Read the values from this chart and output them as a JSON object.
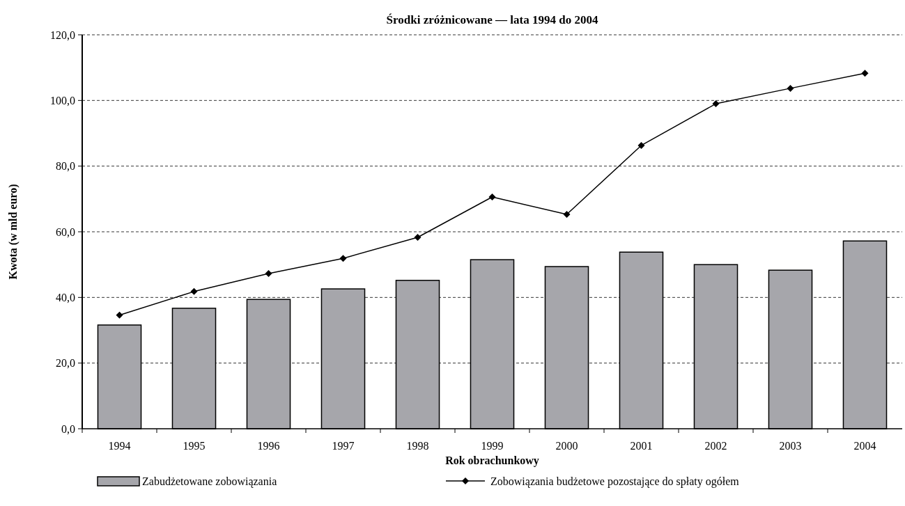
{
  "chart_data": {
    "type": "bar",
    "title": "Środki zróżnicowane — lata 1994 do 2004",
    "xlabel": "Rok obrachunkowy",
    "ylabel": "Kwota (w mld euro)",
    "categories": [
      "1994",
      "1995",
      "1996",
      "1997",
      "1998",
      "1999",
      "2000",
      "2001",
      "2002",
      "2003",
      "2004"
    ],
    "series": [
      {
        "name": "Zabudżetowane zobowiązania",
        "color": "#a6a6ab",
        "values": [
          31.6,
          36.7,
          39.4,
          42.6,
          45.2,
          51.5,
          49.4,
          53.8,
          50.0,
          48.3,
          57.2
        ]
      },
      {
        "name": "Zobowiązania budżetowe pozostające do spłaty ogółem",
        "type": "line",
        "color": "#000000",
        "marker": "diamond",
        "values": [
          34.6,
          41.8,
          47.3,
          51.9,
          58.3,
          70.6,
          65.3,
          86.3,
          99.0,
          103.7,
          108.3
        ]
      }
    ],
    "ylim": [
      0,
      120
    ],
    "yticks": [
      {
        "value": 0,
        "label": "0,0"
      },
      {
        "value": 20,
        "label": "20,0"
      },
      {
        "value": 40,
        "label": "40,0"
      },
      {
        "value": 60,
        "label": "60,0"
      },
      {
        "value": 80,
        "label": "80,0"
      },
      {
        "value": 100,
        "label": "100,0"
      },
      {
        "value": 120,
        "label": "120,0"
      }
    ],
    "grid": "y",
    "legend": "bottom"
  }
}
